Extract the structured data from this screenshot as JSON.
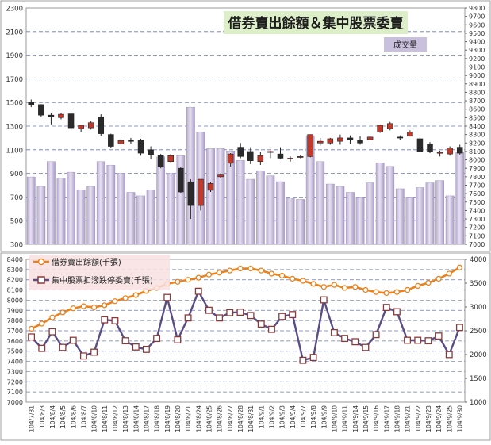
{
  "chart_data": [
    {
      "type": "candlestick",
      "title": "借券賣出餘額＆集中股票委賣",
      "legend": "成交量",
      "yleft_ticks": [
        300,
        500,
        700,
        900,
        1100,
        1300,
        1500,
        1700,
        1900,
        2100,
        2300
      ],
      "ylim_left": [
        300,
        2300
      ],
      "yright_ticks": [
        7000,
        7100,
        7200,
        7300,
        7400,
        7500,
        7600,
        7700,
        7800,
        7900,
        8000,
        8100,
        8200,
        8300,
        8400,
        8500,
        8600,
        8700,
        8800,
        8900,
        9000,
        9100,
        9200,
        9300,
        9400,
        9500,
        9600,
        9700,
        9800
      ],
      "ylim_right": [
        7000,
        9800
      ],
      "volume": [
        870,
        790,
        1000,
        860,
        910,
        760,
        790,
        1000,
        970,
        900,
        740,
        710,
        760,
        1040,
        900,
        1050,
        1460,
        1250,
        1110,
        1110,
        1090,
        1010,
        850,
        920,
        880,
        830,
        690,
        680,
        1220,
        1000,
        810,
        790,
        740,
        700,
        820,
        990,
        960,
        770,
        700,
        780,
        820,
        840,
        710,
        1080
      ],
      "ohlc": [
        [
          8685,
          8715,
          8625,
          8650
        ],
        [
          8655,
          8660,
          8510,
          8530
        ],
        [
          8530,
          8560,
          8420,
          8510
        ],
        [
          8500,
          8560,
          8480,
          8540
        ],
        [
          8545,
          8565,
          8340,
          8380
        ],
        [
          8370,
          8410,
          8330,
          8410
        ],
        [
          8380,
          8460,
          8360,
          8440
        ],
        [
          8510,
          8540,
          8280,
          8310
        ],
        [
          8300,
          8310,
          8140,
          8160
        ],
        [
          8190,
          8250,
          8180,
          8230
        ],
        [
          8230,
          8260,
          8190,
          8220
        ],
        [
          8230,
          8250,
          8050,
          8080
        ],
        [
          8120,
          8160,
          8010,
          8060
        ],
        [
          8050,
          8070,
          7900,
          7920
        ],
        [
          7980,
          8070,
          7970,
          8050
        ],
        [
          7900,
          7920,
          7610,
          7620
        ],
        [
          7740,
          7770,
          7300,
          7460
        ],
        [
          7460,
          7770,
          7400,
          7770
        ],
        [
          7640,
          7740,
          7620,
          7720
        ],
        [
          7800,
          7840,
          7780,
          7830
        ],
        [
          7960,
          8080,
          7920,
          8070
        ],
        [
          8150,
          8200,
          8020,
          8040
        ],
        [
          8100,
          8150,
          7950,
          7990
        ],
        [
          7980,
          8090,
          7940,
          8050
        ],
        [
          8090,
          8110,
          8020,
          8100
        ],
        [
          8070,
          8150,
          8010,
          8020
        ],
        [
          8010,
          8040,
          7980,
          8020
        ],
        [
          8030,
          8050,
          8020,
          8040
        ],
        [
          8040,
          8300,
          8030,
          8300
        ],
        [
          8200,
          8260,
          8170,
          8220
        ],
        [
          8200,
          8260,
          8180,
          8250
        ],
        [
          8220,
          8300,
          8180,
          8260
        ],
        [
          8260,
          8290,
          8190,
          8240
        ],
        [
          8230,
          8280,
          8180,
          8200
        ],
        [
          8240,
          8280,
          8230,
          8270
        ],
        [
          8330,
          8420,
          8320,
          8410
        ],
        [
          8370,
          8450,
          8350,
          8430
        ],
        [
          8270,
          8290,
          8240,
          8260
        ],
        [
          8280,
          8350,
          8280,
          8330
        ],
        [
          8250,
          8270,
          8090,
          8100
        ],
        [
          8190,
          8210,
          8080,
          8100
        ],
        [
          8080,
          8110,
          8040,
          8090
        ],
        [
          8070,
          8160,
          8050,
          8140
        ],
        [
          8150,
          8180,
          8060,
          8080
        ]
      ]
    },
    {
      "type": "line",
      "categories": [
        "104/7/31",
        "104/8/3",
        "104/8/4",
        "104/8/5",
        "104/8/6",
        "104/8/7",
        "104/8/10",
        "104/8/11",
        "104/8/12",
        "104/8/13",
        "104/8/14",
        "104/8/17",
        "104/8/18",
        "104/8/19",
        "104/8/20",
        "104/8/21",
        "104/8/24",
        "104/8/25",
        "104/8/26",
        "104/8/27",
        "104/8/28",
        "104/8/31",
        "104/9/1",
        "104/9/2",
        "104/9/3",
        "104/9/4",
        "104/9/7",
        "104/9/8",
        "104/9/9",
        "104/9/10",
        "104/9/11",
        "104/9/14",
        "104/9/15",
        "104/9/16",
        "104/9/17",
        "104/9/18",
        "104/9/21",
        "104/9/22",
        "104/9/23",
        "104/9/24",
        "104/9/25",
        "104/9/30"
      ],
      "yleft_ticks": [
        7000,
        7100,
        7200,
        7300,
        7400,
        7500,
        7600,
        7700,
        7800,
        7900,
        8000,
        8100,
        8200,
        8300,
        8400
      ],
      "ylim_left": [
        7000,
        8400
      ],
      "yright_ticks": [
        1000,
        1500,
        2000,
        2500,
        3000,
        3500,
        4000
      ],
      "ylim_right": [
        1000,
        4000
      ],
      "series": [
        {
          "name": "借券賣出餘額(千張)",
          "color": "#E8821E",
          "axis": "left",
          "values": [
            7720,
            7770,
            7830,
            7880,
            7920,
            7940,
            7930,
            7950,
            7990,
            8020,
            8050,
            8090,
            8120,
            8160,
            8180,
            8200,
            8220,
            8250,
            8270,
            8290,
            8310,
            8310,
            8290,
            8260,
            8240,
            8210,
            8190,
            8160,
            8130,
            8150,
            8120,
            8130,
            8100,
            8080,
            8070,
            8080,
            8100,
            8140,
            8170,
            8210,
            8260,
            8320
          ]
        },
        {
          "name": "集中股票扣潑跌停委賣(千張)",
          "color": "#5A4D86",
          "axis": "right",
          "values": [
            2370,
            2130,
            2480,
            2150,
            2300,
            1970,
            2050,
            2730,
            2710,
            2290,
            2160,
            2110,
            2340,
            3200,
            2310,
            2770,
            3330,
            2930,
            2770,
            2880,
            2890,
            2820,
            2640,
            2530,
            2800,
            2840,
            1880,
            1940,
            3150,
            2460,
            2340,
            2270,
            2150,
            2420,
            2990,
            2900,
            2300,
            2300,
            2290,
            2390,
            2000,
            2570
          ]
        }
      ]
    }
  ]
}
